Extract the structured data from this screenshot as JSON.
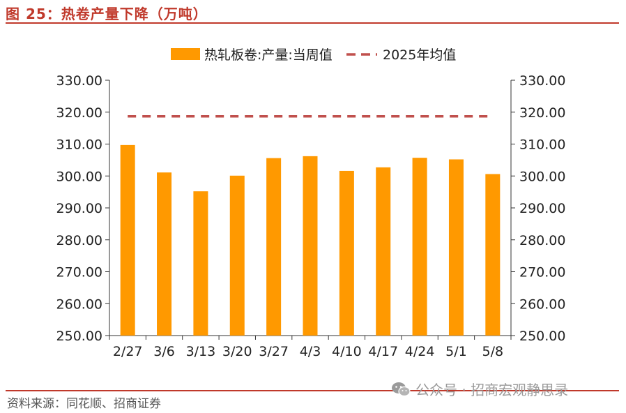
{
  "title": "图 25：热卷产量下降（万吨）",
  "source": "资料来源：同花顺、招商证券",
  "watermark": "公众号 · 招商宏观静思录",
  "colors": {
    "bar": "#FF9900",
    "avg_line": "#C0504D",
    "accent": "#C0392B"
  },
  "chart_data": {
    "type": "bar",
    "categories": [
      "2/27",
      "3/6",
      "3/13",
      "3/20",
      "3/27",
      "4/3",
      "4/10",
      "4/17",
      "4/24",
      "5/1",
      "5/8"
    ],
    "series": [
      {
        "name": "热轧板卷:产量:当周值",
        "type": "bar",
        "values": [
          309.7,
          301.1,
          295.2,
          300.1,
          305.6,
          306.2,
          301.6,
          302.7,
          305.7,
          305.2,
          300.6
        ]
      },
      {
        "name": "2025年均值",
        "type": "line-dashed",
        "values": [
          318.7,
          318.7,
          318.7,
          318.7,
          318.7,
          318.7,
          318.7,
          318.7,
          318.7,
          318.7,
          318.7
        ]
      }
    ],
    "ylim": [
      250,
      330
    ],
    "yticks": [
      "250.00",
      "260.00",
      "270.00",
      "280.00",
      "290.00",
      "300.00",
      "310.00",
      "320.00",
      "330.00"
    ],
    "y2ticks": [
      "250.00",
      "260.00",
      "270.00",
      "280.00",
      "290.00",
      "300.00",
      "310.00",
      "320.00",
      "330.00"
    ],
    "legend_position": "top-center",
    "grid": false
  }
}
